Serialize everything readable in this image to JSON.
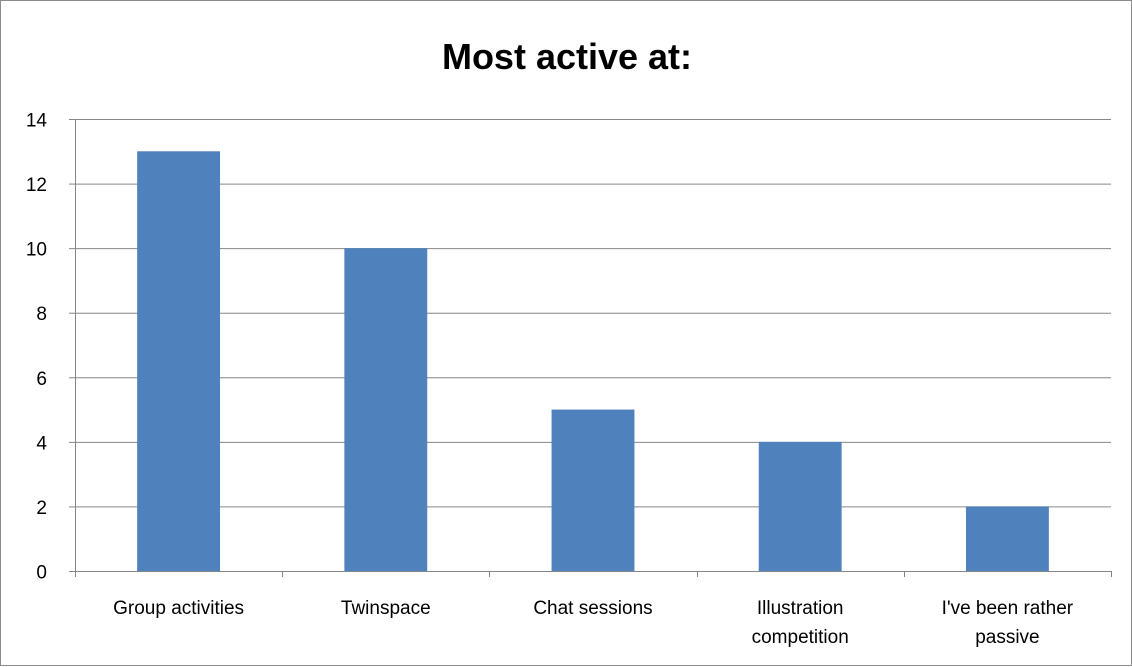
{
  "chart_data": {
    "type": "bar",
    "title": "Most active at:",
    "categories": [
      [
        "Group activities"
      ],
      [
        "Twinspace"
      ],
      [
        "Chat sessions"
      ],
      [
        "Illustration",
        "competition"
      ],
      [
        "I've been rather",
        "passive"
      ]
    ],
    "values": [
      13,
      10,
      5,
      4,
      2
    ],
    "ylim": [
      0,
      14
    ],
    "yticks": [
      0,
      2,
      4,
      6,
      8,
      10,
      12,
      14
    ],
    "grid": true,
    "legend": "none",
    "bar_color": "#4f81bd",
    "grid_color": "#868686"
  }
}
